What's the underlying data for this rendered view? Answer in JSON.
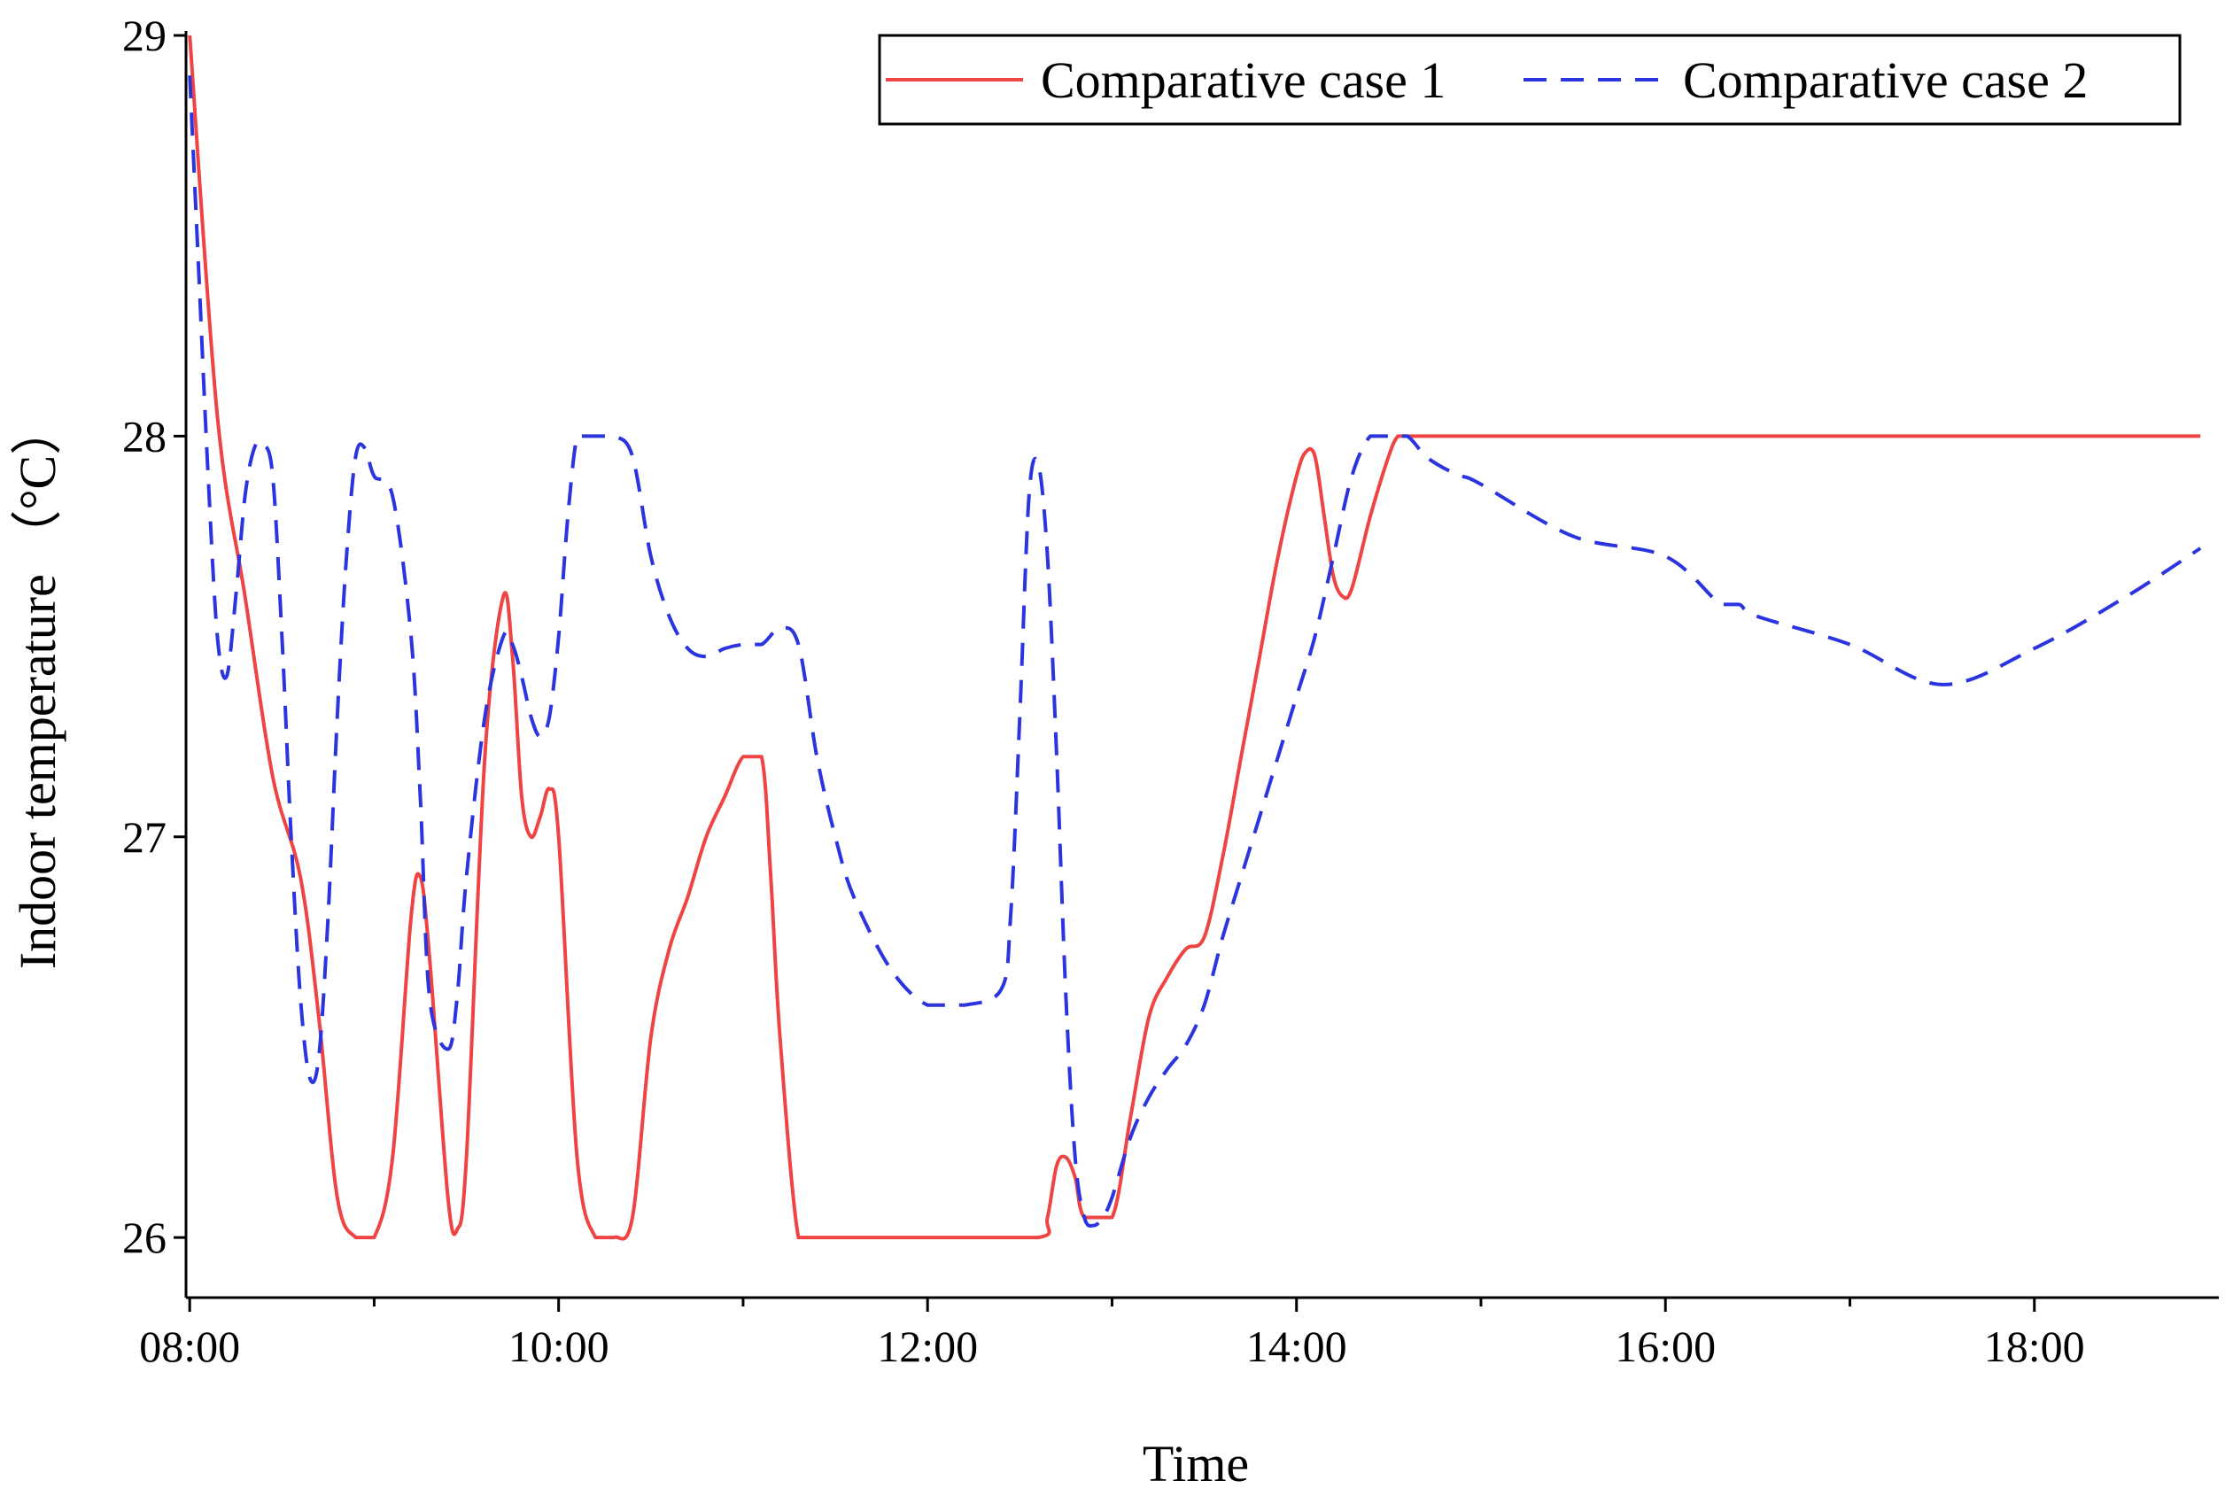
{
  "chart_data": {
    "type": "line",
    "xlabel": "Time",
    "ylabel": "Indoor temperature （°C）",
    "x_unit": "hour of day",
    "xlim": [
      7.98,
      19.0
    ],
    "ylim": [
      25.85,
      29.0
    ],
    "y_ticks": [
      {
        "value": 26,
        "label": "26"
      },
      {
        "value": 27,
        "label": "27"
      },
      {
        "value": 28,
        "label": "28"
      },
      {
        "value": 29,
        "label": "29"
      }
    ],
    "x_ticks": [
      {
        "value": 8,
        "label": "08:00"
      },
      {
        "value": 10,
        "label": "10:00"
      },
      {
        "value": 12,
        "label": "12:00"
      },
      {
        "value": 14,
        "label": "14:00"
      },
      {
        "value": 16,
        "label": "16:00"
      },
      {
        "value": 18,
        "label": "18:00"
      }
    ],
    "x_minor_ticks": [
      9,
      11,
      13,
      15,
      17
    ],
    "grid": false,
    "legend_position": "top-right",
    "series": [
      {
        "name": "Comparative case 1",
        "color": "#ee4444",
        "dash": "solid",
        "x": [
          8.0,
          8.15,
          8.3,
          8.45,
          8.6,
          8.7,
          8.8,
          8.9,
          9.0,
          9.1,
          9.2,
          9.25,
          9.3,
          9.4,
          9.45,
          9.5,
          9.6,
          9.7,
          9.75,
          9.8,
          9.85,
          9.9,
          9.95,
          10.0,
          10.1,
          10.2,
          10.3,
          10.4,
          10.5,
          10.6,
          10.7,
          10.8,
          10.9,
          11.0,
          11.1,
          11.15,
          11.2,
          11.3,
          11.4,
          11.5,
          12.0,
          12.6,
          12.65,
          12.7,
          12.75,
          12.8,
          12.85,
          13.0,
          13.1,
          13.2,
          13.3,
          13.4,
          13.5,
          13.6,
          13.7,
          13.8,
          13.9,
          14.0,
          14.05,
          14.1,
          14.15,
          14.2,
          14.25,
          14.3,
          14.4,
          14.5,
          14.55,
          14.6,
          15.0,
          16.0,
          17.0,
          18.0,
          18.9
        ],
        "values": [
          29.0,
          28.05,
          27.6,
          27.15,
          26.9,
          26.55,
          26.1,
          26.0,
          26.0,
          26.2,
          26.8,
          26.9,
          26.7,
          26.1,
          26.02,
          26.2,
          27.2,
          27.6,
          27.45,
          27.1,
          27.0,
          27.05,
          27.12,
          27.0,
          26.2,
          26.0,
          26.0,
          26.05,
          26.5,
          26.72,
          26.85,
          27.0,
          27.1,
          27.2,
          27.2,
          26.9,
          26.5,
          26.0,
          26.0,
          26.0,
          26.0,
          26.0,
          26.05,
          26.18,
          26.2,
          26.15,
          26.05,
          26.05,
          26.3,
          26.55,
          26.65,
          26.72,
          26.75,
          26.95,
          27.2,
          27.45,
          27.7,
          27.9,
          27.96,
          27.95,
          27.8,
          27.65,
          27.6,
          27.62,
          27.8,
          27.95,
          28.0,
          28.0,
          28.0,
          28.0,
          28.0,
          28.0,
          28.0
        ]
      },
      {
        "name": "Comparative case 2",
        "color": "#2a35e0",
        "dash": "dashed",
        "x": [
          8.0,
          8.05,
          8.1,
          8.15,
          8.2,
          8.25,
          8.3,
          8.35,
          8.4,
          8.45,
          8.5,
          8.55,
          8.6,
          8.65,
          8.7,
          8.75,
          8.8,
          8.85,
          8.9,
          8.95,
          9.0,
          9.1,
          9.2,
          9.25,
          9.3,
          9.4,
          9.45,
          9.5,
          9.6,
          9.7,
          9.75,
          9.8,
          9.85,
          9.9,
          9.95,
          10.0,
          10.05,
          10.1,
          10.15,
          10.2,
          10.3,
          10.4,
          10.5,
          10.6,
          10.7,
          10.8,
          10.9,
          11.0,
          11.1,
          11.2,
          11.3,
          11.4,
          11.5,
          11.6,
          11.8,
          12.0,
          12.2,
          12.4,
          12.45,
          12.5,
          12.55,
          12.6,
          12.65,
          12.7,
          12.75,
          12.8,
          12.85,
          12.9,
          12.95,
          13.0,
          13.1,
          13.2,
          13.3,
          13.4,
          13.5,
          13.6,
          13.7,
          13.8,
          13.9,
          14.0,
          14.1,
          14.2,
          14.3,
          14.4,
          14.5,
          14.6,
          14.7,
          14.8,
          14.9,
          15.0,
          15.5,
          16.0,
          16.3,
          16.4,
          16.5,
          17.0,
          17.5,
          18.0,
          18.5,
          18.9
        ],
        "values": [
          28.9,
          28.4,
          27.9,
          27.5,
          27.4,
          27.6,
          27.85,
          27.97,
          27.98,
          27.9,
          27.5,
          27.0,
          26.6,
          26.4,
          26.45,
          26.8,
          27.3,
          27.7,
          27.95,
          27.97,
          27.9,
          27.85,
          27.5,
          27.1,
          26.6,
          26.47,
          26.6,
          26.9,
          27.3,
          27.5,
          27.48,
          27.4,
          27.3,
          27.25,
          27.3,
          27.5,
          27.8,
          28.0,
          28.0,
          28.0,
          28.0,
          27.95,
          27.7,
          27.55,
          27.47,
          27.45,
          27.47,
          27.48,
          27.48,
          27.52,
          27.48,
          27.2,
          27.0,
          26.85,
          26.67,
          26.58,
          26.58,
          26.62,
          26.8,
          27.3,
          27.85,
          27.93,
          27.7,
          27.2,
          26.6,
          26.2,
          26.05,
          26.03,
          26.05,
          26.1,
          26.25,
          26.35,
          26.42,
          26.48,
          26.58,
          26.75,
          26.9,
          27.05,
          27.2,
          27.35,
          27.5,
          27.7,
          27.9,
          28.0,
          28.0,
          28.0,
          27.95,
          27.92,
          27.9,
          27.88,
          27.75,
          27.7,
          27.58,
          27.58,
          27.55,
          27.48,
          27.38,
          27.47,
          27.6,
          27.72
        ]
      }
    ]
  }
}
